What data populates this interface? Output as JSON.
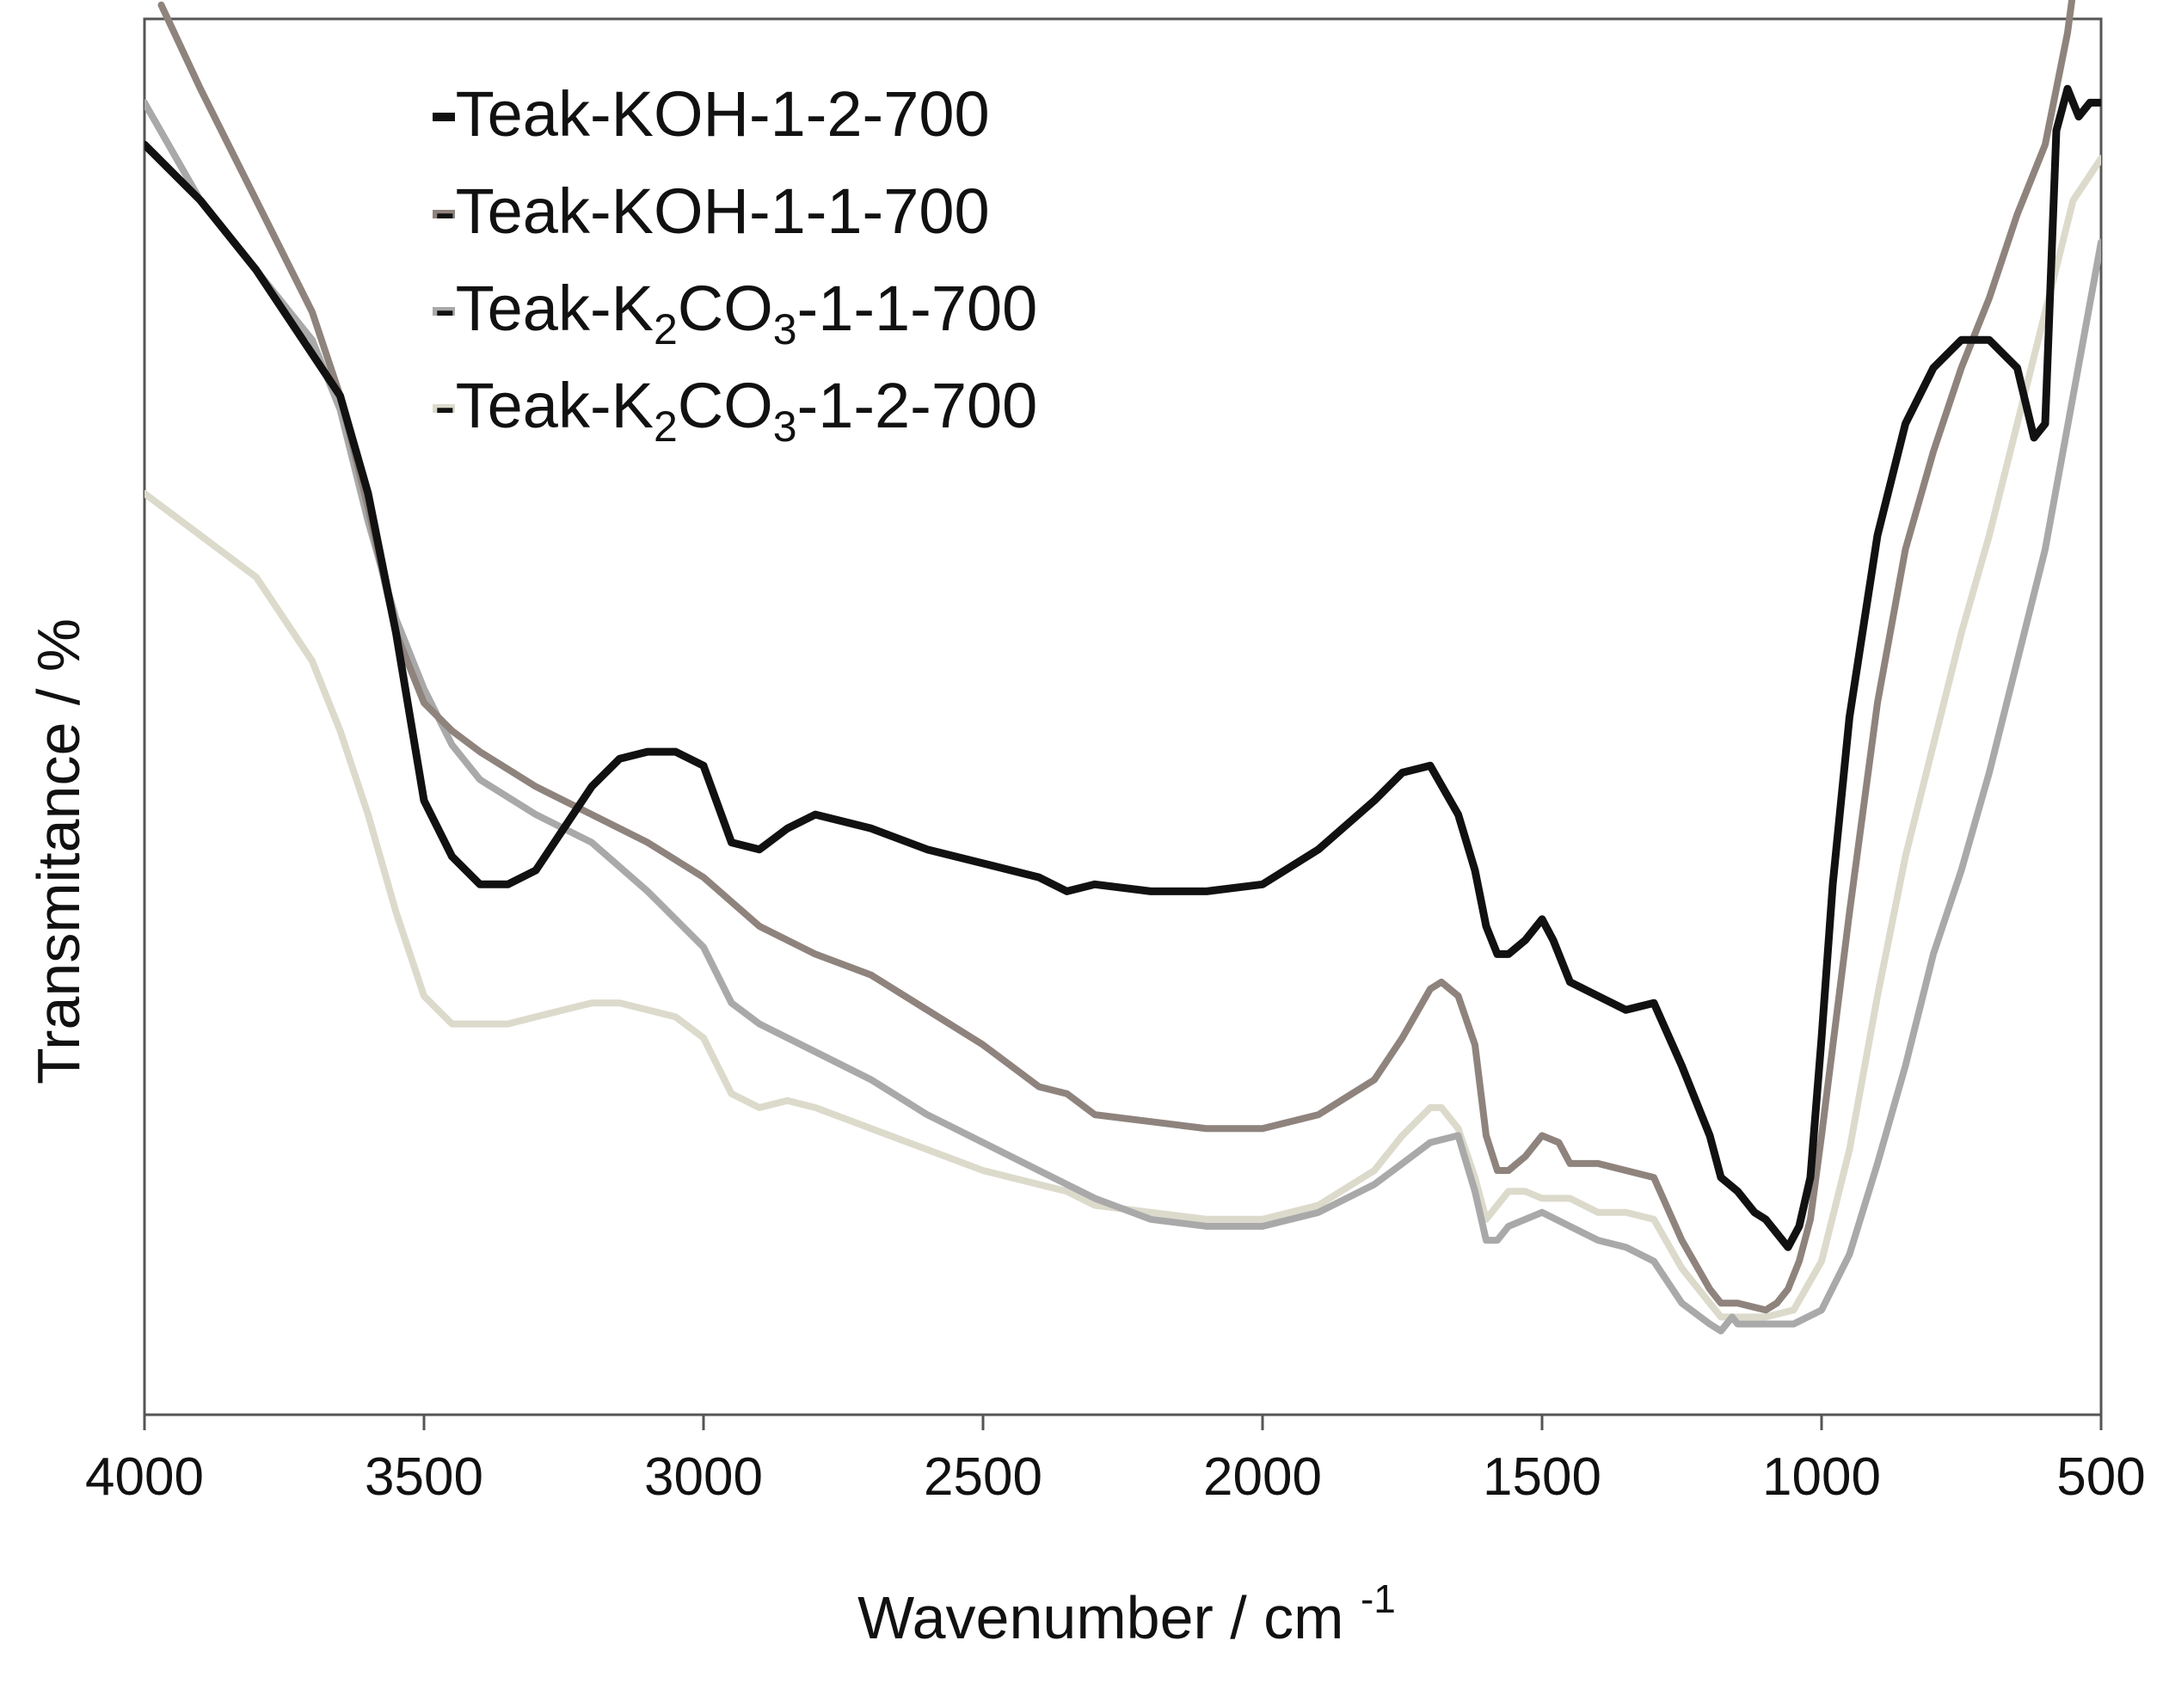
{
  "chart_data": {
    "type": "line",
    "title": "",
    "xlabel": "Wavenumber  / cm",
    "xlabel_superscript": "-1",
    "ylabel": "Transmitance  / %",
    "xlim": [
      4000,
      500
    ],
    "x_reversed": true,
    "ylim": [
      0,
      100
    ],
    "y_ticks_shown": false,
    "grid": false,
    "legend_position": "top-left",
    "x_ticks": [
      4000,
      3500,
      3000,
      2500,
      2000,
      1500,
      1000,
      500
    ],
    "x_tick_labels": [
      "4000",
      "3500",
      "3000",
      "2500",
      "2000",
      "1500",
      "1000",
      "500"
    ],
    "series": [
      {
        "name": "Teak-KOH-1-2-700",
        "legend_label": "-Teak-KOH-1-2-700",
        "color": "#111111",
        "x": [
          4000,
          3900,
          3800,
          3700,
          3650,
          3600,
          3550,
          3500,
          3450,
          3400,
          3350,
          3300,
          3250,
          3200,
          3150,
          3100,
          3050,
          3000,
          2950,
          2900,
          2850,
          2800,
          2700,
          2600,
          2500,
          2400,
          2350,
          2300,
          2200,
          2100,
          2000,
          1900,
          1800,
          1750,
          1700,
          1650,
          1620,
          1600,
          1580,
          1560,
          1530,
          1500,
          1480,
          1450,
          1400,
          1350,
          1300,
          1250,
          1200,
          1180,
          1150,
          1120,
          1100,
          1080,
          1060,
          1040,
          1020,
          1000,
          980,
          950,
          900,
          850,
          800,
          750,
          700,
          650,
          620,
          600,
          580,
          560,
          540,
          520,
          500
        ],
        "y": [
          91,
          87,
          82,
          76,
          73,
          66,
          56,
          44,
          40,
          38,
          38,
          39,
          42,
          45,
          47,
          47.5,
          47.5,
          46.5,
          41,
          40.5,
          42,
          43,
          42,
          40.5,
          39.5,
          38.5,
          37.5,
          38,
          37.5,
          37.5,
          38,
          40.5,
          44,
          46,
          46.5,
          43,
          39,
          35,
          33,
          33,
          34,
          35.5,
          34,
          31,
          30,
          29,
          29.5,
          25,
          20,
          17,
          16,
          14.5,
          14,
          13,
          12,
          13.5,
          17,
          27,
          38,
          50,
          63,
          71,
          75,
          77,
          77,
          75,
          70,
          71,
          92,
          95,
          93,
          94,
          94
        ]
      },
      {
        "name": "Teak-KOH-1-1-700",
        "legend_label": "-Teak-KOH-1-1-700",
        "color": "#8f837d",
        "x": [
          3970,
          3900,
          3800,
          3700,
          3650,
          3600,
          3550,
          3500,
          3450,
          3400,
          3300,
          3200,
          3100,
          3000,
          2900,
          2800,
          2700,
          2600,
          2500,
          2400,
          2350,
          2300,
          2200,
          2100,
          2000,
          1900,
          1800,
          1750,
          1700,
          1680,
          1650,
          1620,
          1600,
          1580,
          1560,
          1530,
          1500,
          1470,
          1450,
          1400,
          1350,
          1300,
          1250,
          1200,
          1180,
          1150,
          1100,
          1080,
          1060,
          1040,
          1020,
          1000,
          950,
          900,
          850,
          800,
          750,
          700,
          650,
          600,
          560,
          550
        ],
        "y": [
          101,
          95,
          87,
          79,
          73,
          65,
          56,
          51,
          49,
          47.5,
          45,
          43,
          41,
          38.5,
          35,
          33,
          31.5,
          29,
          26.5,
          23.5,
          23,
          21.5,
          21,
          20.5,
          20.5,
          21.5,
          24,
          27,
          30.5,
          31,
          30,
          26.5,
          20,
          17.5,
          17.5,
          18.5,
          20,
          19.5,
          18,
          18,
          17.5,
          17,
          12.5,
          9,
          8,
          8,
          7.5,
          8,
          9,
          11,
          14,
          20,
          36,
          51,
          62,
          69,
          75,
          80,
          86,
          91,
          99,
          102
        ]
      },
      {
        "name": "Teak-K2CO3-1-1-700",
        "legend_label": "-Teak-K",
        "legend_sub1": "2",
        "legend_mid": "CO",
        "legend_sub2": "3",
        "legend_tail": "-1-1-700",
        "color": "#a9a9a9",
        "x": [
          4000,
          3900,
          3800,
          3700,
          3650,
          3600,
          3550,
          3500,
          3450,
          3400,
          3300,
          3200,
          3100,
          3000,
          2950,
          2900,
          2800,
          2700,
          2600,
          2500,
          2400,
          2350,
          2300,
          2200,
          2100,
          2000,
          1900,
          1800,
          1750,
          1700,
          1650,
          1620,
          1600,
          1580,
          1560,
          1530,
          1500,
          1450,
          1400,
          1350,
          1300,
          1250,
          1200,
          1180,
          1160,
          1150,
          1100,
          1050,
          1000,
          950,
          900,
          850,
          800,
          750,
          700,
          650,
          600,
          550,
          500
        ],
        "y": [
          94,
          87,
          82,
          77,
          72,
          64,
          57,
          52,
          48,
          45.5,
          43,
          41,
          37.5,
          33.5,
          29.5,
          28,
          26,
          24,
          21.5,
          19.5,
          17.5,
          16.5,
          15.5,
          14,
          13.5,
          13.5,
          14.5,
          16.5,
          18,
          19.5,
          20,
          16,
          12.5,
          12.5,
          13.5,
          14,
          14.5,
          13.5,
          12.5,
          12,
          11,
          8,
          6.5,
          6,
          7,
          6.5,
          6.5,
          6.5,
          7.5,
          11.5,
          18,
          25,
          33,
          39,
          46,
          54,
          62,
          73,
          84
        ]
      },
      {
        "name": "Teak-K2CO3-1-2-700",
        "legend_label": "-Teak-K",
        "legend_sub1": "2",
        "legend_mid": "CO",
        "legend_sub2": "3",
        "legend_tail": "-1-2-700",
        "color": "#dcdacb",
        "x": [
          4000,
          3900,
          3800,
          3750,
          3700,
          3650,
          3600,
          3550,
          3500,
          3450,
          3400,
          3350,
          3300,
          3250,
          3200,
          3150,
          3100,
          3050,
          3000,
          2950,
          2900,
          2850,
          2800,
          2700,
          2600,
          2500,
          2400,
          2350,
          2300,
          2200,
          2100,
          2000,
          1900,
          1800,
          1750,
          1700,
          1680,
          1650,
          1620,
          1600,
          1580,
          1560,
          1530,
          1500,
          1450,
          1400,
          1350,
          1300,
          1250,
          1200,
          1180,
          1150,
          1100,
          1050,
          1000,
          950,
          900,
          850,
          800,
          750,
          700,
          650,
          600,
          550,
          500
        ],
        "y": [
          66,
          63,
          60,
          57,
          54,
          49,
          43,
          36,
          30,
          28,
          28,
          28,
          28.5,
          29,
          29.5,
          29.5,
          29,
          28.5,
          27,
          23,
          22,
          22.5,
          22,
          20.5,
          19,
          17.5,
          16.5,
          16,
          15,
          14.5,
          14,
          14,
          15,
          17.5,
          20,
          22,
          22,
          20.5,
          17,
          14,
          15,
          16,
          16,
          15.5,
          15.5,
          14.5,
          14.5,
          14,
          10.5,
          8,
          7,
          7,
          7,
          7.5,
          11,
          19,
          30,
          40,
          48,
          56,
          63,
          71,
          79,
          87,
          90
        ]
      }
    ]
  }
}
